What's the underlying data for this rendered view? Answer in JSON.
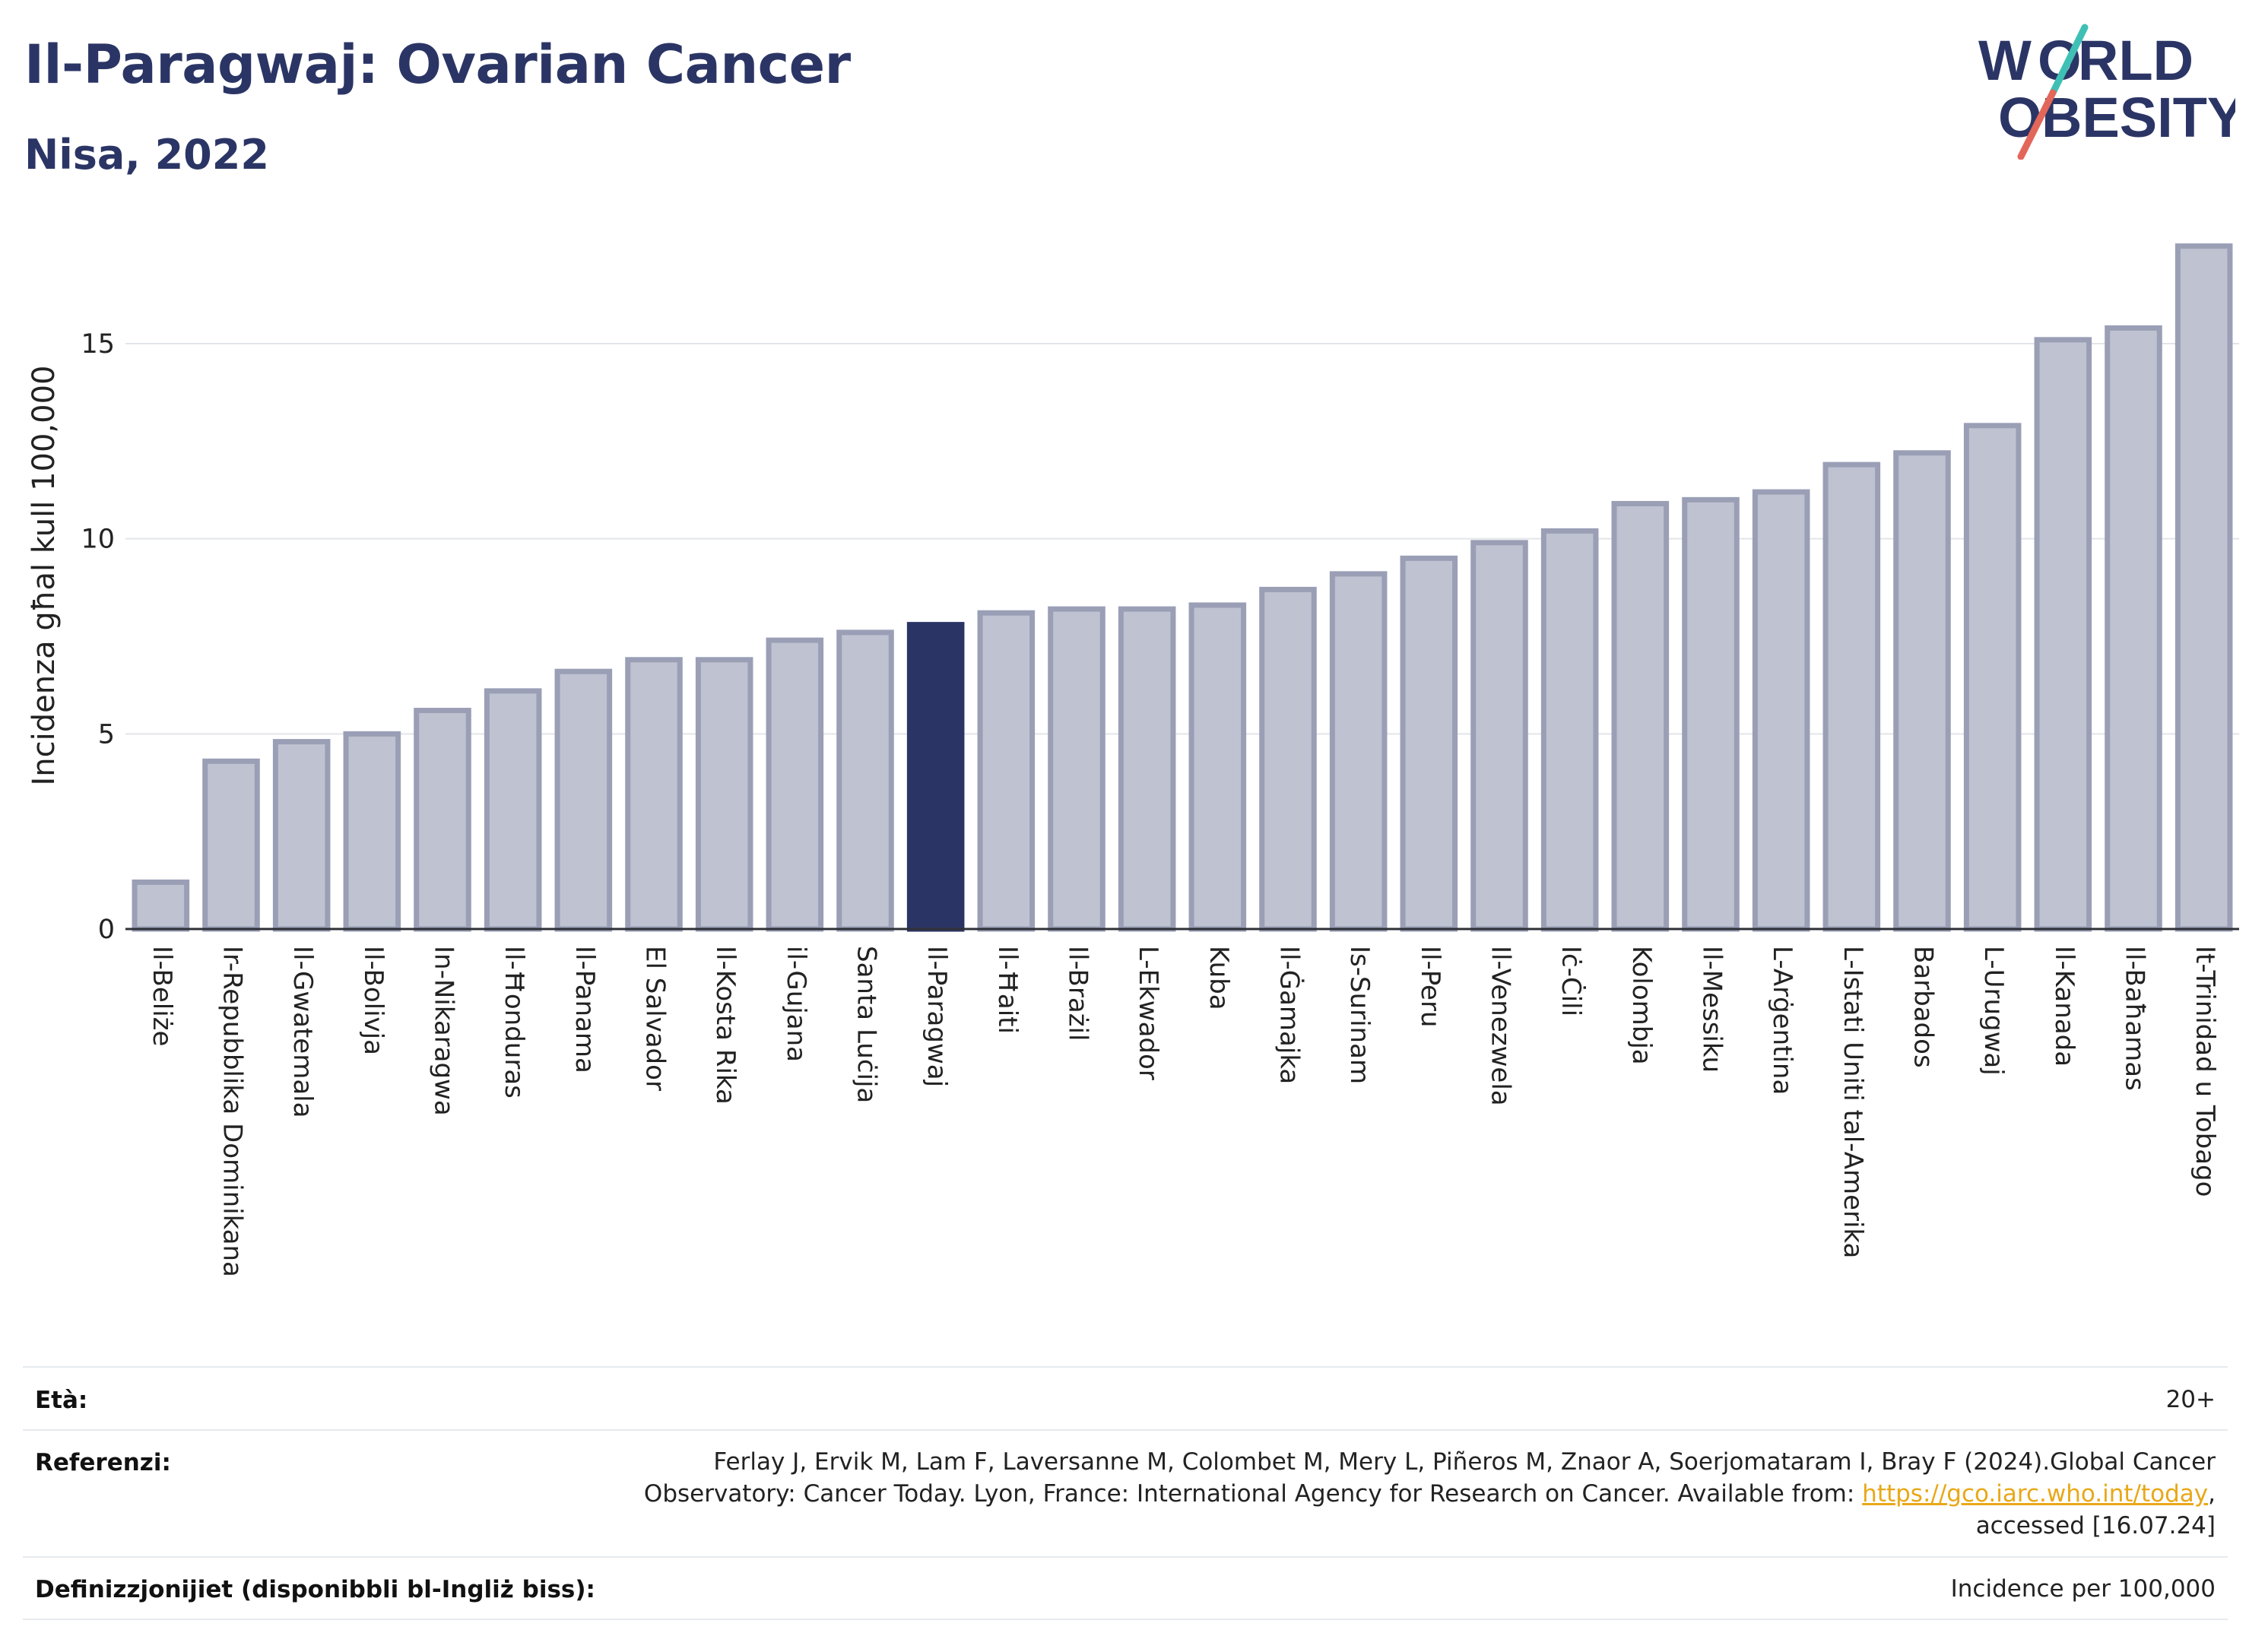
{
  "header": {
    "title": "Il-Paragwaj: Ovarian Cancer",
    "subtitle": "Nisa, 2022",
    "logo_line1": "WORLD",
    "logo_line2": "OBESITY"
  },
  "colors": {
    "highlight": "#2b3565",
    "bar_fill": "#bfc2d0",
    "bar_stroke": "#9a9fb6",
    "accent_teal": "#3fc0b5",
    "accent_red": "#e2675a"
  },
  "chart_data": {
    "type": "bar",
    "title": "Il-Paragwaj: Ovarian Cancer",
    "subtitle": "Nisa, 2022",
    "ylabel": "Incidenza għal kull 100,000",
    "xlabel": "",
    "ylim": [
      0,
      18
    ],
    "yticks": [
      0,
      5,
      10,
      15
    ],
    "grid": true,
    "highlight": "Il-Paragwaj",
    "categories": [
      "Il-Beliże",
      "Ir-Repubblika Dominikana",
      "Il-Gwatemala",
      "Il-Bolivja",
      "In-Nikaragwa",
      "Il-Ħonduras",
      "Il-Panama",
      "El Salvador",
      "Il-Kosta Rika",
      "il-Gujana",
      "Santa Luċija",
      "Il-Paragwaj",
      "Il-Ħaiti",
      "Il-Brażil",
      "L-Ekwador",
      "Kuba",
      "Il-Ġamajka",
      "Is-Surinam",
      "Il-Peru",
      "Il-Venezwela",
      "Iċ-Ċili",
      "Kolombja",
      "Il-Messiku",
      "L-Arġentina",
      "L-Istati Uniti tal-Amerika",
      "Barbados",
      "L-Urugwaj",
      "Il-Kanada",
      "Il-Baħamas",
      "It-Trinidad u Tobago"
    ],
    "values": [
      1.2,
      4.3,
      4.8,
      5.0,
      5.6,
      6.1,
      6.6,
      6.9,
      6.9,
      7.4,
      7.6,
      7.8,
      8.1,
      8.2,
      8.2,
      8.3,
      8.7,
      9.1,
      9.5,
      9.9,
      10.2,
      10.9,
      11.0,
      11.2,
      11.9,
      12.2,
      12.9,
      15.1,
      15.4,
      17.5
    ]
  },
  "meta": {
    "age_label": "Età:",
    "age_value": "20+",
    "ref_label": "Referenzi:",
    "ref_text_1": "Ferlay J, Ervik M, Lam F, Laversanne M, Colombet M, Mery L, Piñeros M, Znaor A, Soerjomataram I, Bray F (2024).Global Cancer",
    "ref_text_2": "Observatory: Cancer Today. Lyon, France: International Agency for Research on Cancer. Available from: ",
    "ref_link": "https://gco.iarc.who.int/today",
    "ref_text_3": ",",
    "ref_text_4": "accessed [16.07.24]",
    "def_label": "Definizzjonijiet (disponibbli bl-Ingliż biss):",
    "def_value": "Incidence per 100,000"
  }
}
